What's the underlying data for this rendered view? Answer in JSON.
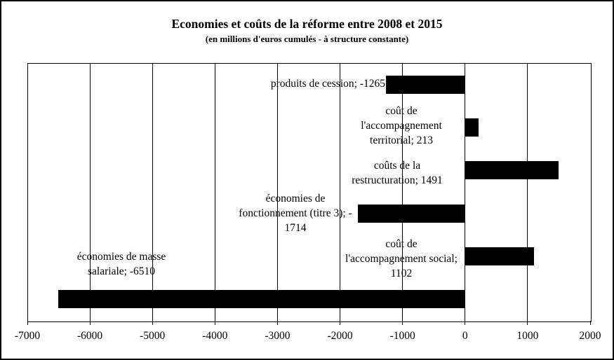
{
  "title": "Economies et coûts de la réforme entre 2008 et 2015",
  "subtitle": "(en millions d'euros cumulés - à structure constante)",
  "colors": {
    "bar": "#000000",
    "text": "#000000",
    "background": "#ffffff",
    "border": "#000000"
  },
  "chart_data": {
    "type": "bar",
    "orientation": "horizontal",
    "title": "Economies et coûts de la réforme entre 2008 et 2015",
    "subtitle": "(en millions d'euros cumulés - à structure constante)",
    "categories": [
      "produits de cession",
      "coût de l'accompagnement territorial",
      "coûts de la restructuration",
      "économies de fonctionnement (titre 3)",
      "coût de l'accompagnement social",
      "économies de masse salariale"
    ],
    "values": [
      -1265,
      213,
      1491,
      -1714,
      1102,
      -6510
    ],
    "data_labels": [
      "produits de cession; -1265",
      "coût de\nl'accompagnement\nterritorial; 213",
      "coûts de la\nrestructuration; 1491",
      "économies de\nfonctionnement (titre 3); -\n1714",
      "coût de\nl'accompagnement social;\n1102",
      "économies de masse\nsalariale; -6510"
    ],
    "xlim": [
      -7000,
      2000
    ],
    "x_ticks": [
      -7000,
      -6000,
      -5000,
      -4000,
      -3000,
      -2000,
      -1000,
      0,
      1000,
      2000
    ],
    "x_tick_labels": [
      "-7000",
      "-6000",
      "-5000",
      "-4000",
      "-3000",
      "-2000",
      "-1000",
      "0",
      "1000",
      "2000"
    ],
    "bar_color": "#000000",
    "grid": true,
    "legend": "none",
    "xlabel": "",
    "ylabel": ""
  }
}
